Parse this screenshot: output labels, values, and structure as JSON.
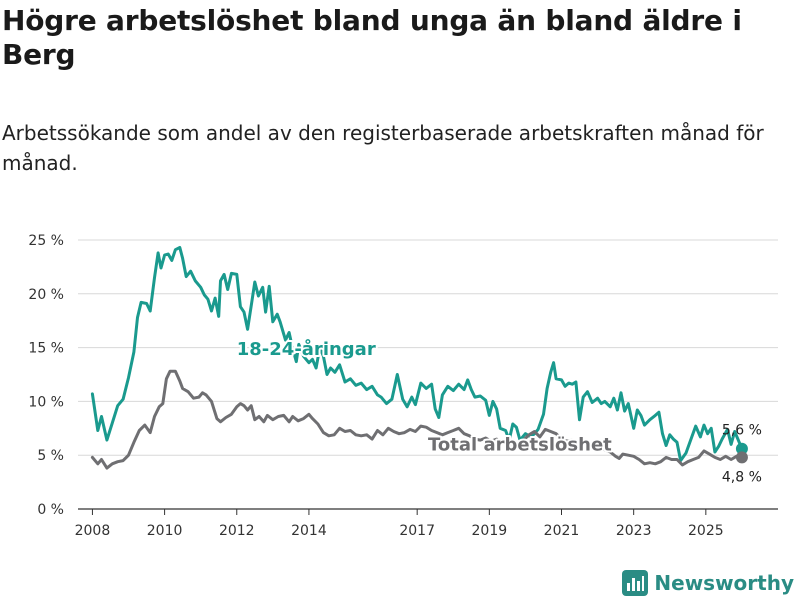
{
  "header": {
    "title": "Högre arbetslöshet bland unga än bland äldre i Berg",
    "subtitle": "Arbetssökande som andel av den registerbaserade arbetskraften månad för månad."
  },
  "brand": {
    "name": "Newsworthy",
    "icon": "bar-chart-logo-icon",
    "color": "#2a8c84"
  },
  "chart_data": {
    "type": "line",
    "title": "Högre arbetslöshet bland unga än bland äldre i Berg",
    "xlabel": "",
    "ylabel": "",
    "xlim": [
      2007.6,
      2027.0
    ],
    "ylim": [
      0,
      25
    ],
    "grid": true,
    "y_ticks": [
      0,
      5,
      10,
      15,
      20,
      25
    ],
    "y_tick_labels": [
      "0 %",
      "5 %",
      "10 %",
      "15 %",
      "20 %",
      "25 %"
    ],
    "x_ticks": [
      2008,
      2010,
      2012,
      2014,
      2017,
      2019,
      2021,
      2023,
      2025
    ],
    "x_tick_labels": [
      "2008",
      "2010",
      "2012",
      "2014",
      "2017",
      "2019",
      "2021",
      "2023",
      "2025"
    ],
    "series": [
      {
        "name": "18-24-åringar",
        "color": "#1a9a8e",
        "end_label": "5,6 %",
        "points": [
          [
            2008.0,
            10.7
          ],
          [
            2008.15,
            7.3
          ],
          [
            2008.25,
            8.6
          ],
          [
            2008.4,
            6.4
          ],
          [
            2008.55,
            8.0
          ],
          [
            2008.7,
            9.6
          ],
          [
            2008.85,
            10.2
          ],
          [
            2009.0,
            12.2
          ],
          [
            2009.15,
            14.6
          ],
          [
            2009.25,
            17.8
          ],
          [
            2009.35,
            19.2
          ],
          [
            2009.5,
            19.1
          ],
          [
            2009.6,
            18.4
          ],
          [
            2009.72,
            21.5
          ],
          [
            2009.82,
            23.8
          ],
          [
            2009.9,
            22.4
          ],
          [
            2010.0,
            23.6
          ],
          [
            2010.1,
            23.7
          ],
          [
            2010.2,
            23.1
          ],
          [
            2010.3,
            24.1
          ],
          [
            2010.42,
            24.3
          ],
          [
            2010.5,
            23.3
          ],
          [
            2010.6,
            21.6
          ],
          [
            2010.72,
            22.1
          ],
          [
            2010.85,
            21.2
          ],
          [
            2011.0,
            20.6
          ],
          [
            2011.1,
            19.9
          ],
          [
            2011.2,
            19.5
          ],
          [
            2011.3,
            18.4
          ],
          [
            2011.4,
            19.6
          ],
          [
            2011.5,
            17.9
          ],
          [
            2011.55,
            21.2
          ],
          [
            2011.65,
            21.8
          ],
          [
            2011.75,
            20.4
          ],
          [
            2011.85,
            21.9
          ],
          [
            2012.0,
            21.8
          ],
          [
            2012.1,
            18.8
          ],
          [
            2012.2,
            18.3
          ],
          [
            2012.3,
            16.7
          ],
          [
            2012.42,
            19.3
          ],
          [
            2012.5,
            21.1
          ],
          [
            2012.6,
            19.8
          ],
          [
            2012.72,
            20.6
          ],
          [
            2012.8,
            18.3
          ],
          [
            2012.9,
            20.7
          ],
          [
            2013.0,
            17.4
          ],
          [
            2013.12,
            18.1
          ],
          [
            2013.2,
            17.4
          ],
          [
            2013.35,
            15.7
          ],
          [
            2013.45,
            16.4
          ],
          [
            2013.55,
            14.9
          ],
          [
            2013.65,
            13.7
          ],
          [
            2013.72,
            15.3
          ],
          [
            2013.85,
            14.2
          ],
          [
            2014.0,
            13.6
          ],
          [
            2014.1,
            13.9
          ],
          [
            2014.2,
            13.1
          ],
          [
            2014.3,
            15.0
          ],
          [
            2014.4,
            14.2
          ],
          [
            2014.5,
            12.5
          ],
          [
            2014.6,
            13.1
          ],
          [
            2014.72,
            12.7
          ],
          [
            2014.85,
            13.4
          ],
          [
            2015.0,
            11.8
          ],
          [
            2015.15,
            12.1
          ],
          [
            2015.3,
            11.5
          ],
          [
            2015.45,
            11.7
          ],
          [
            2015.6,
            11.1
          ],
          [
            2015.75,
            11.4
          ],
          [
            2015.9,
            10.6
          ],
          [
            2016.0,
            10.4
          ],
          [
            2016.15,
            9.8
          ],
          [
            2016.3,
            10.2
          ],
          [
            2016.45,
            12.5
          ],
          [
            2016.6,
            10.2
          ],
          [
            2016.72,
            9.5
          ],
          [
            2016.85,
            10.4
          ],
          [
            2016.95,
            9.7
          ],
          [
            2017.1,
            11.7
          ],
          [
            2017.25,
            11.2
          ],
          [
            2017.4,
            11.6
          ],
          [
            2017.5,
            9.3
          ],
          [
            2017.6,
            8.5
          ],
          [
            2017.7,
            10.6
          ],
          [
            2017.85,
            11.4
          ],
          [
            2018.0,
            11.0
          ],
          [
            2018.15,
            11.6
          ],
          [
            2018.3,
            11.1
          ],
          [
            2018.4,
            12.0
          ],
          [
            2018.5,
            11.1
          ],
          [
            2018.6,
            10.4
          ],
          [
            2018.75,
            10.5
          ],
          [
            2018.9,
            10.1
          ],
          [
            2019.0,
            8.7
          ],
          [
            2019.1,
            10.0
          ],
          [
            2019.2,
            9.3
          ],
          [
            2019.3,
            7.5
          ],
          [
            2019.45,
            7.3
          ],
          [
            2019.55,
            6.4
          ],
          [
            2019.65,
            7.9
          ],
          [
            2019.75,
            7.6
          ],
          [
            2019.85,
            6.4
          ],
          [
            2020.0,
            7.0
          ],
          [
            2020.15,
            6.7
          ],
          [
            2020.25,
            7.0
          ],
          [
            2020.35,
            7.4
          ],
          [
            2020.5,
            8.8
          ],
          [
            2020.6,
            11.2
          ],
          [
            2020.7,
            12.7
          ],
          [
            2020.78,
            13.6
          ],
          [
            2020.85,
            12.1
          ],
          [
            2021.0,
            12.0
          ],
          [
            2021.1,
            11.4
          ],
          [
            2021.2,
            11.7
          ],
          [
            2021.3,
            11.6
          ],
          [
            2021.4,
            11.8
          ],
          [
            2021.5,
            8.3
          ],
          [
            2021.6,
            10.4
          ],
          [
            2021.72,
            10.9
          ],
          [
            2021.85,
            9.9
          ],
          [
            2022.0,
            10.3
          ],
          [
            2022.1,
            9.8
          ],
          [
            2022.2,
            10.0
          ],
          [
            2022.35,
            9.5
          ],
          [
            2022.45,
            10.3
          ],
          [
            2022.55,
            9.2
          ],
          [
            2022.65,
            10.8
          ],
          [
            2022.75,
            9.1
          ],
          [
            2022.85,
            9.8
          ],
          [
            2023.0,
            7.5
          ],
          [
            2023.1,
            9.2
          ],
          [
            2023.2,
            8.7
          ],
          [
            2023.3,
            7.8
          ],
          [
            2023.45,
            8.3
          ],
          [
            2023.6,
            8.7
          ],
          [
            2023.7,
            9.0
          ],
          [
            2023.8,
            7.0
          ],
          [
            2023.9,
            5.9
          ],
          [
            2024.0,
            6.9
          ],
          [
            2024.1,
            6.5
          ],
          [
            2024.2,
            6.2
          ],
          [
            2024.3,
            4.5
          ],
          [
            2024.45,
            5.2
          ],
          [
            2024.6,
            6.6
          ],
          [
            2024.72,
            7.7
          ],
          [
            2024.85,
            6.7
          ],
          [
            2024.95,
            7.8
          ],
          [
            2025.05,
            7.0
          ],
          [
            2025.15,
            7.5
          ],
          [
            2025.25,
            5.3
          ],
          [
            2025.35,
            5.8
          ],
          [
            2025.45,
            6.5
          ],
          [
            2025.6,
            7.4
          ],
          [
            2025.7,
            6.0
          ],
          [
            2025.8,
            7.2
          ],
          [
            2026.0,
            5.6
          ]
        ]
      },
      {
        "name": "Total arbetslöshet",
        "color": "#6f6f72",
        "end_label": "4,8 %",
        "points": [
          [
            2008.0,
            4.8
          ],
          [
            2008.15,
            4.2
          ],
          [
            2008.25,
            4.6
          ],
          [
            2008.4,
            3.8
          ],
          [
            2008.55,
            4.2
          ],
          [
            2008.7,
            4.4
          ],
          [
            2008.85,
            4.5
          ],
          [
            2009.0,
            5.0
          ],
          [
            2009.15,
            6.2
          ],
          [
            2009.3,
            7.3
          ],
          [
            2009.45,
            7.8
          ],
          [
            2009.6,
            7.1
          ],
          [
            2009.72,
            8.6
          ],
          [
            2009.85,
            9.5
          ],
          [
            2009.95,
            9.8
          ],
          [
            2010.05,
            12.1
          ],
          [
            2010.15,
            12.8
          ],
          [
            2010.3,
            12.8
          ],
          [
            2010.42,
            11.9
          ],
          [
            2010.5,
            11.2
          ],
          [
            2010.65,
            10.9
          ],
          [
            2010.8,
            10.3
          ],
          [
            2010.95,
            10.4
          ],
          [
            2011.05,
            10.8
          ],
          [
            2011.15,
            10.6
          ],
          [
            2011.3,
            10.0
          ],
          [
            2011.45,
            8.4
          ],
          [
            2011.55,
            8.1
          ],
          [
            2011.7,
            8.5
          ],
          [
            2011.85,
            8.8
          ],
          [
            2012.0,
            9.5
          ],
          [
            2012.1,
            9.8
          ],
          [
            2012.2,
            9.6
          ],
          [
            2012.3,
            9.2
          ],
          [
            2012.4,
            9.6
          ],
          [
            2012.5,
            8.3
          ],
          [
            2012.62,
            8.6
          ],
          [
            2012.75,
            8.1
          ],
          [
            2012.85,
            8.7
          ],
          [
            2013.0,
            8.3
          ],
          [
            2013.15,
            8.6
          ],
          [
            2013.3,
            8.7
          ],
          [
            2013.45,
            8.1
          ],
          [
            2013.55,
            8.6
          ],
          [
            2013.7,
            8.2
          ],
          [
            2013.85,
            8.4
          ],
          [
            2014.0,
            8.8
          ],
          [
            2014.1,
            8.4
          ],
          [
            2014.25,
            7.9
          ],
          [
            2014.4,
            7.1
          ],
          [
            2014.55,
            6.8
          ],
          [
            2014.7,
            6.9
          ],
          [
            2014.85,
            7.5
          ],
          [
            2015.0,
            7.2
          ],
          [
            2015.15,
            7.3
          ],
          [
            2015.3,
            6.9
          ],
          [
            2015.45,
            6.8
          ],
          [
            2015.6,
            6.9
          ],
          [
            2015.75,
            6.5
          ],
          [
            2015.9,
            7.3
          ],
          [
            2016.05,
            6.9
          ],
          [
            2016.2,
            7.5
          ],
          [
            2016.35,
            7.2
          ],
          [
            2016.5,
            7.0
          ],
          [
            2016.65,
            7.1
          ],
          [
            2016.8,
            7.4
          ],
          [
            2016.95,
            7.2
          ],
          [
            2017.1,
            7.7
          ],
          [
            2017.25,
            7.6
          ],
          [
            2017.4,
            7.3
          ],
          [
            2017.55,
            7.1
          ],
          [
            2017.7,
            6.9
          ],
          [
            2017.85,
            7.1
          ],
          [
            2018.0,
            7.3
          ],
          [
            2018.15,
            7.5
          ],
          [
            2018.3,
            7.0
          ],
          [
            2018.45,
            6.8
          ],
          [
            2018.6,
            6.5
          ],
          [
            2018.75,
            6.4
          ],
          [
            2018.9,
            6.6
          ],
          [
            2019.05,
            6.3
          ],
          [
            2019.2,
            6.5
          ],
          [
            2019.35,
            6.1
          ],
          [
            2019.5,
            6.2
          ],
          [
            2019.65,
            6.0
          ],
          [
            2019.8,
            6.1
          ],
          [
            2019.95,
            6.4
          ],
          [
            2020.1,
            6.9
          ],
          [
            2020.25,
            7.2
          ],
          [
            2020.4,
            6.7
          ],
          [
            2020.55,
            7.4
          ],
          [
            2020.7,
            7.2
          ],
          [
            2020.85,
            7.0
          ],
          [
            2021.0,
            6.5
          ],
          [
            2021.15,
            6.3
          ],
          [
            2021.3,
            6.4
          ],
          [
            2021.45,
            5.9
          ],
          [
            2021.6,
            6.0
          ],
          [
            2021.75,
            6.2
          ],
          [
            2021.9,
            5.7
          ],
          [
            2022.05,
            5.8
          ],
          [
            2022.2,
            5.5
          ],
          [
            2022.35,
            5.3
          ],
          [
            2022.5,
            4.9
          ],
          [
            2022.6,
            4.7
          ],
          [
            2022.7,
            5.1
          ],
          [
            2022.85,
            5.0
          ],
          [
            2023.0,
            4.9
          ],
          [
            2023.15,
            4.6
          ],
          [
            2023.3,
            4.2
          ],
          [
            2023.45,
            4.3
          ],
          [
            2023.6,
            4.2
          ],
          [
            2023.75,
            4.4
          ],
          [
            2023.9,
            4.8
          ],
          [
            2024.05,
            4.6
          ],
          [
            2024.2,
            4.6
          ],
          [
            2024.35,
            4.1
          ],
          [
            2024.5,
            4.4
          ],
          [
            2024.65,
            4.6
          ],
          [
            2024.8,
            4.8
          ],
          [
            2024.95,
            5.4
          ],
          [
            2025.1,
            5.1
          ],
          [
            2025.25,
            4.8
          ],
          [
            2025.4,
            4.6
          ],
          [
            2025.55,
            4.9
          ],
          [
            2025.7,
            4.6
          ],
          [
            2025.85,
            4.9
          ],
          [
            2026.0,
            4.8
          ]
        ]
      }
    ],
    "annotations": [
      {
        "text": "18-24-åringar",
        "series": 0
      },
      {
        "text": "Total arbetslöshet",
        "series": 1
      }
    ]
  }
}
